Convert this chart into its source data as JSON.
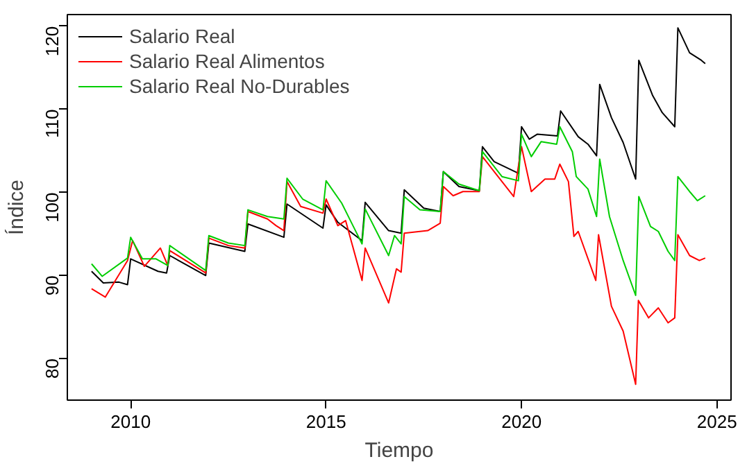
{
  "chart_data": {
    "type": "line",
    "xlabel": "Tiempo",
    "ylabel": "Índice",
    "xlim": [
      2008.38,
      2025.36
    ],
    "ylim": [
      75,
      121.4
    ],
    "xticks": [
      2010,
      2015,
      2020,
      2025
    ],
    "yticks": [
      80,
      90,
      100,
      110,
      120
    ],
    "grid": false,
    "legend": "top left",
    "marker": "none",
    "line_style": "solid",
    "series": [
      {
        "name": "Salario Real",
        "color": "#000000",
        "x": [
          2009.0,
          2009.3,
          2009.7,
          2009.92,
          2010.0,
          2010.7,
          2010.92,
          2011.0,
          2011.92,
          2012.0,
          2012.92,
          2013.0,
          2013.92,
          2014.0,
          2014.92,
          2015.0,
          2015.3,
          2015.92,
          2016.0,
          2016.6,
          2016.92,
          2017.0,
          2017.5,
          2017.92,
          2018.0,
          2018.4,
          2018.92,
          2019.0,
          2019.3,
          2019.92,
          2020.0,
          2020.2,
          2020.4,
          2020.92,
          2021.0,
          2021.45,
          2021.7,
          2021.92,
          2022.0,
          2022.3,
          2022.6,
          2022.92,
          2023.0,
          2023.35,
          2023.6,
          2023.92,
          2024.0,
          2024.3,
          2024.6,
          2024.7
        ],
        "values": [
          90.5,
          89.1,
          89.2,
          88.9,
          92.0,
          90.5,
          90.3,
          92.4,
          90.0,
          93.9,
          92.9,
          96.2,
          94.6,
          98.6,
          95.7,
          98.5,
          96.4,
          94.2,
          98.8,
          95.4,
          95.1,
          100.3,
          98.1,
          97.7,
          102.5,
          100.7,
          100.2,
          105.5,
          103.7,
          102.3,
          107.9,
          106.4,
          107.0,
          106.8,
          109.8,
          106.7,
          105.8,
          104.4,
          113.0,
          109.0,
          106.0,
          101.6,
          115.9,
          111.7,
          109.6,
          107.9,
          119.8,
          116.8,
          115.9,
          115.5
        ]
      },
      {
        "name": "Salario Real Alimentos",
        "color": "#ff0000",
        "x": [
          2009.0,
          2009.35,
          2009.92,
          2010.05,
          2010.35,
          2010.76,
          2010.95,
          2011.0,
          2011.92,
          2012.0,
          2012.5,
          2012.92,
          2013.0,
          2013.5,
          2013.72,
          2013.92,
          2014.0,
          2014.35,
          2014.92,
          2015.0,
          2015.3,
          2015.5,
          2015.92,
          2016.0,
          2016.6,
          2016.8,
          2016.92,
          2017.0,
          2017.6,
          2017.92,
          2018.0,
          2018.25,
          2018.5,
          2018.92,
          2019.0,
          2019.8,
          2020.0,
          2020.25,
          2020.6,
          2020.85,
          2020.98,
          2021.2,
          2021.34,
          2021.45,
          2021.9,
          2021.97,
          2022.3,
          2022.6,
          2022.92,
          2022.99,
          2023.25,
          2023.5,
          2023.75,
          2023.92,
          2024.0,
          2024.3,
          2024.55,
          2024.7
        ],
        "values": [
          88.4,
          87.4,
          91.8,
          94.2,
          91.1,
          93.3,
          91.2,
          93.0,
          90.3,
          94.5,
          93.6,
          93.3,
          97.7,
          96.8,
          96.0,
          95.4,
          101.3,
          98.3,
          97.5,
          99.2,
          96.0,
          96.6,
          89.4,
          93.3,
          86.7,
          90.8,
          90.4,
          95.1,
          95.4,
          96.3,
          100.7,
          99.6,
          100.1,
          100.1,
          104.3,
          99.5,
          105.5,
          100.1,
          101.6,
          101.6,
          103.4,
          101.3,
          94.7,
          95.3,
          89.4,
          94.9,
          86.3,
          83.3,
          76.9,
          87.0,
          84.9,
          86.1,
          84.3,
          84.9,
          94.9,
          92.4,
          91.8,
          92.1
        ]
      },
      {
        "name": "Salario Real No-Durables",
        "color": "#00cd00",
        "x": [
          2009.0,
          2009.27,
          2009.92,
          2010.0,
          2010.3,
          2010.65,
          2010.95,
          2011.0,
          2011.92,
          2012.0,
          2012.5,
          2012.92,
          2013.0,
          2013.5,
          2013.92,
          2014.0,
          2014.4,
          2014.92,
          2015.0,
          2015.4,
          2015.92,
          2016.0,
          2016.6,
          2016.75,
          2016.92,
          2017.0,
          2017.4,
          2017.92,
          2018.0,
          2018.4,
          2018.92,
          2019.0,
          2019.5,
          2019.92,
          2020.0,
          2020.25,
          2020.5,
          2020.9,
          2020.98,
          2021.3,
          2021.4,
          2021.7,
          2021.92,
          2022.0,
          2022.25,
          2022.6,
          2022.92,
          2023.0,
          2023.3,
          2023.5,
          2023.75,
          2023.92,
          2024.0,
          2024.3,
          2024.5,
          2024.7
        ],
        "values": [
          91.4,
          89.9,
          92.1,
          94.6,
          92.0,
          92.0,
          91.2,
          93.6,
          90.6,
          94.8,
          93.9,
          93.6,
          97.9,
          97.1,
          96.8,
          101.7,
          99.2,
          97.9,
          101.4,
          98.7,
          93.8,
          98.0,
          92.4,
          94.8,
          93.8,
          99.5,
          97.9,
          97.7,
          102.5,
          101.0,
          100.2,
          104.9,
          101.9,
          101.4,
          107.0,
          104.3,
          106.1,
          105.8,
          107.9,
          104.9,
          101.9,
          100.4,
          97.1,
          104.0,
          97.1,
          91.8,
          87.6,
          99.5,
          95.9,
          95.3,
          92.9,
          91.8,
          101.9,
          100.1,
          99.0,
          99.6
        ]
      }
    ]
  }
}
